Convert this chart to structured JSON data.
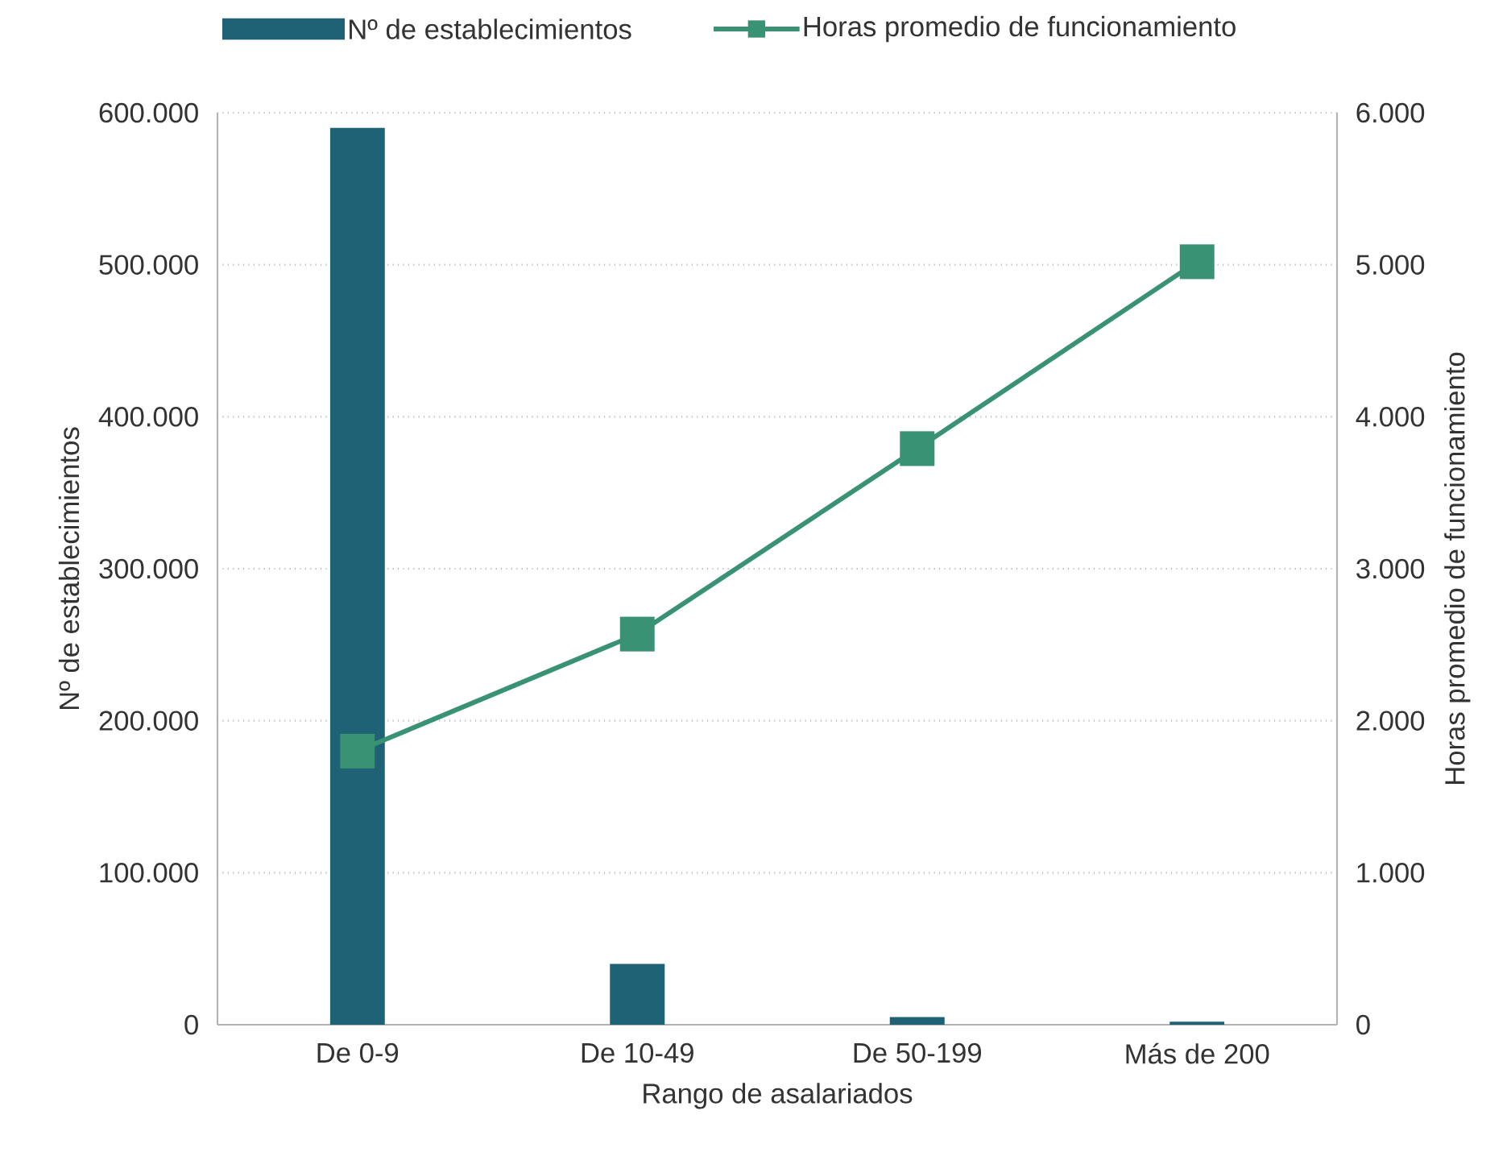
{
  "chart_data": {
    "type": "bar",
    "xlabel": "Rango de asalariados",
    "ylabel": "Nº de establecimientos",
    "y2label": "Horas promedio de funcionamiento",
    "categories": [
      "De 0-9",
      "De 10-49",
      "De 50-199",
      "Más de 200"
    ],
    "series": [
      {
        "name": "Nº de establecimientos",
        "color": "#1f6275",
        "values": [
          590000,
          40000,
          5000,
          2000
        ]
      },
      {
        "name": "Horas promedio de funcionamiento",
        "type": "line",
        "axis": "y2",
        "color": "#3a9274",
        "marker": "square",
        "line_style": "solid",
        "values": [
          1800,
          2570,
          3790,
          5020
        ]
      }
    ],
    "ylim": [
      0,
      600000
    ],
    "yticks": [
      {
        "value": 0,
        "label": "0"
      },
      {
        "value": 100000,
        "label": "100.000"
      },
      {
        "value": 200000,
        "label": "200.000"
      },
      {
        "value": 300000,
        "label": "300.000"
      },
      {
        "value": 400000,
        "label": "400.000"
      },
      {
        "value": 500000,
        "label": "500.000"
      },
      {
        "value": 600000,
        "label": "600.000"
      }
    ],
    "y2lim": [
      0,
      6000
    ],
    "y2ticks": [
      {
        "value": 0,
        "label": "0"
      },
      {
        "value": 1000,
        "label": "1.000"
      },
      {
        "value": 2000,
        "label": "2.000"
      },
      {
        "value": 3000,
        "label": "3.000"
      },
      {
        "value": 4000,
        "label": "4.000"
      },
      {
        "value": 5000,
        "label": "5.000"
      },
      {
        "value": 6000,
        "label": "6.000"
      }
    ],
    "grid": "y",
    "legend": "top"
  }
}
